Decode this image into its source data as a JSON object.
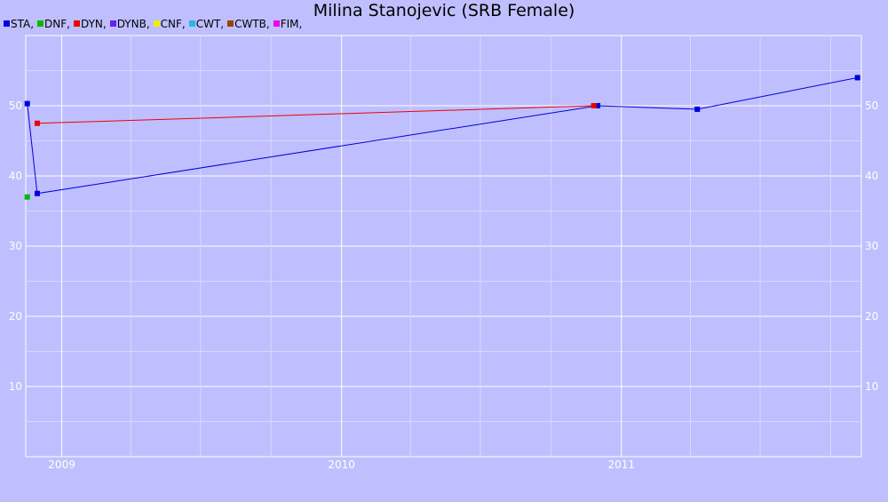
{
  "chart_data": {
    "type": "line",
    "title": "Milina Stanojevic (SRB Female)",
    "xlabel": "",
    "ylabel": "",
    "ylim": [
      0,
      60
    ],
    "xlim": [
      "2008-11-15",
      "2011-11-10"
    ],
    "x_ticks": [
      {
        "date": "2009-01-01",
        "label": "2009"
      },
      {
        "date": "2010-01-01",
        "label": "2010"
      },
      {
        "date": "2011-01-01",
        "label": "2011"
      }
    ],
    "y_ticks": [
      10,
      20,
      30,
      40,
      50
    ],
    "grid": true,
    "legend_position": "top-left",
    "legend": [
      {
        "name": "STA",
        "color": "#0000dd"
      },
      {
        "name": "DNF",
        "color": "#00bb00"
      },
      {
        "name": "DYN",
        "color": "#ee0000"
      },
      {
        "name": "DYNB",
        "color": "#6622ee"
      },
      {
        "name": "CNF",
        "color": "#eeee00"
      },
      {
        "name": "CWT",
        "color": "#22bbdd"
      },
      {
        "name": "CWTB",
        "color": "#994400"
      },
      {
        "name": "FIM",
        "color": "#ee00ee"
      }
    ],
    "series": [
      {
        "name": "STA",
        "color": "#0000dd",
        "points": [
          {
            "x": "2008-11-17",
            "y": 50.3
          },
          {
            "x": "2008-11-30",
            "y": 37.5
          },
          {
            "x": "2010-12-01",
            "y": 50.0
          },
          {
            "x": "2011-04-10",
            "y": 49.5
          },
          {
            "x": "2011-11-05",
            "y": 54.0
          }
        ]
      },
      {
        "name": "DNF",
        "color": "#00bb00",
        "points": [
          {
            "x": "2008-11-17",
            "y": 37.0
          }
        ]
      },
      {
        "name": "DYN",
        "color": "#ee0000",
        "points": [
          {
            "x": "2008-11-30",
            "y": 47.5
          },
          {
            "x": "2010-11-26",
            "y": 50.0
          }
        ]
      }
    ]
  }
}
